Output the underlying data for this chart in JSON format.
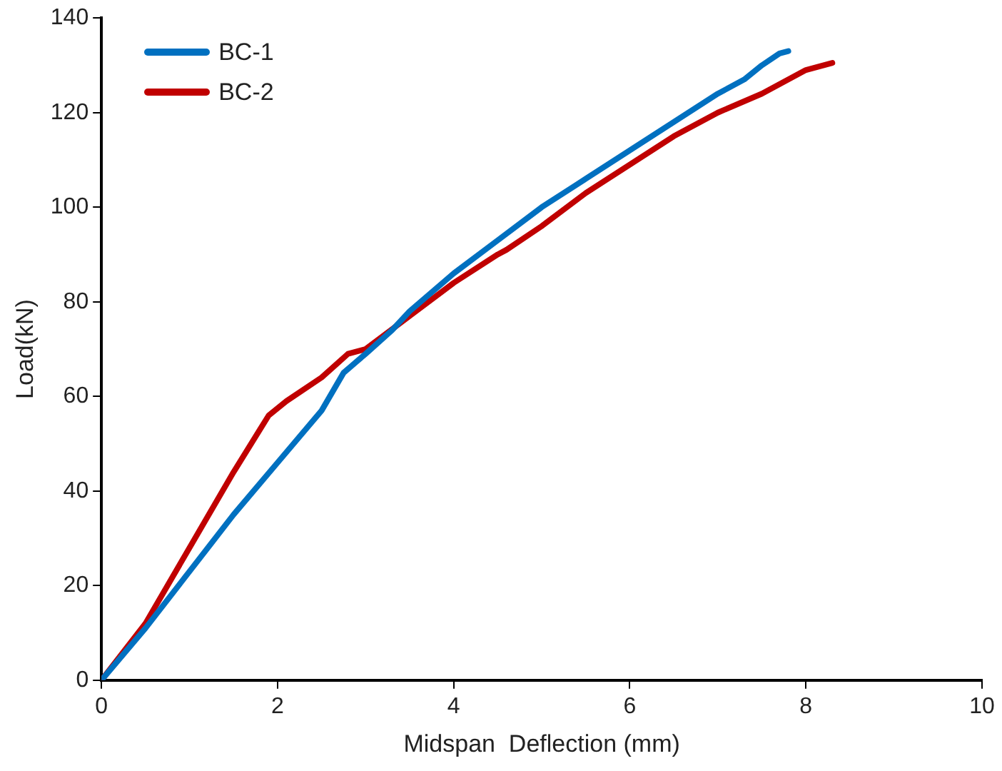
{
  "chart_data": {
    "type": "line",
    "xlabel": "Midspan  Deflection (mm)",
    "ylabel": "Load(kN)",
    "xlim": [
      0,
      10
    ],
    "xticks": [
      0,
      2,
      4,
      6,
      8,
      10
    ],
    "ylim": [
      0,
      140
    ],
    "yticks": [
      0,
      20,
      40,
      60,
      80,
      100,
      120,
      140
    ],
    "grid": false,
    "legend": "top left",
    "marker": "none",
    "line_style": "solid",
    "series": [
      {
        "name": "BC-1",
        "color": "#0070c0",
        "x": [
          0,
          0.5,
          1,
          1.5,
          2,
          2.5,
          2.75,
          3,
          3.3,
          3.5,
          4,
          4.5,
          5,
          5.5,
          6,
          6.5,
          7,
          7.3,
          7.5,
          7.7,
          7.8
        ],
        "values": [
          0,
          11,
          23,
          35,
          46,
          57,
          65,
          69,
          74,
          78,
          86,
          93,
          100,
          106,
          112,
          118,
          124,
          127,
          130,
          132.5,
          133
        ]
      },
      {
        "name": "BC-2",
        "color": "#c00000",
        "x": [
          0,
          0.5,
          1,
          1.5,
          1.8,
          1.9,
          2.1,
          2.5,
          2.8,
          3,
          3.5,
          4,
          4.5,
          4.6,
          5,
          5.5,
          6,
          6.5,
          7,
          7.5,
          8,
          8.3
        ],
        "values": [
          0,
          12,
          28,
          44,
          53,
          56,
          59,
          64,
          69,
          70,
          77,
          84,
          90,
          91,
          96,
          103,
          109,
          115,
          120,
          124,
          129,
          130.5
        ]
      }
    ]
  }
}
